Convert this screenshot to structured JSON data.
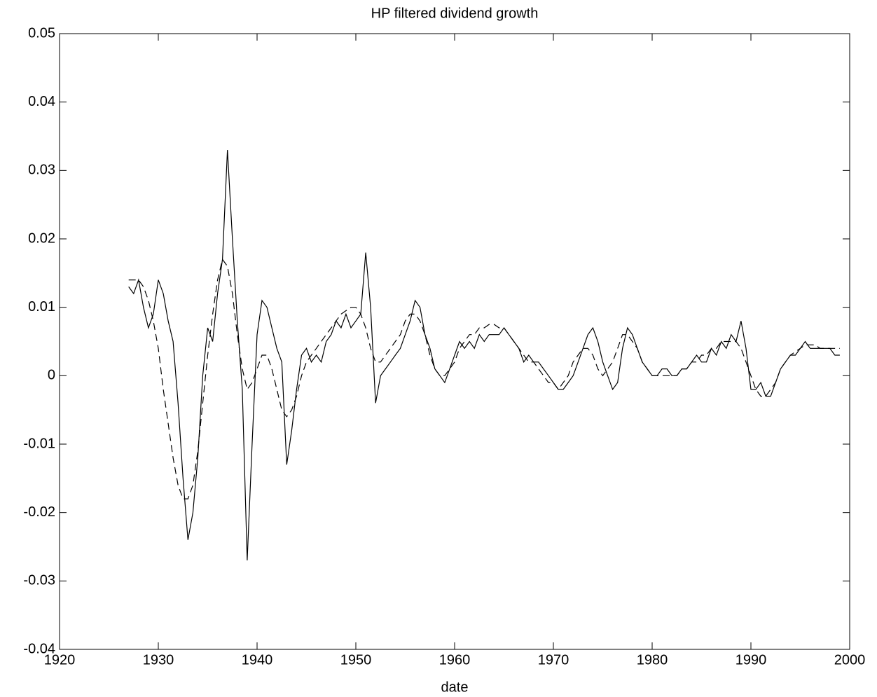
{
  "chart_data": {
    "type": "line",
    "title": "HP filtered dividend growth",
    "xlabel": "date",
    "x": [
      1927,
      1927.5,
      1928,
      1928.5,
      1929,
      1929.5,
      1930,
      1930.5,
      1931,
      1931.5,
      1932,
      1932.5,
      1933,
      1933.5,
      1934,
      1934.5,
      1935,
      1935.5,
      1936,
      1936.5,
      1937,
      1937.5,
      1938,
      1938.5,
      1939,
      1939.5,
      1940,
      1940.5,
      1941,
      1941.5,
      1942,
      1942.5,
      1943,
      1943.5,
      1944,
      1944.5,
      1945,
      1945.5,
      1946,
      1946.5,
      1947,
      1947.5,
      1948,
      1948.5,
      1949,
      1949.5,
      1950,
      1950.5,
      1951,
      1951.5,
      1952,
      1952.5,
      1953,
      1953.5,
      1954,
      1954.5,
      1955,
      1955.5,
      1956,
      1956.5,
      1957,
      1957.5,
      1958,
      1958.5,
      1959,
      1959.5,
      1960,
      1960.5,
      1961,
      1961.5,
      1962,
      1962.5,
      1963,
      1963.5,
      1964,
      1964.5,
      1965,
      1965.5,
      1966,
      1966.5,
      1967,
      1967.5,
      1968,
      1968.5,
      1969,
      1969.5,
      1970,
      1970.5,
      1971,
      1971.5,
      1972,
      1972.5,
      1973,
      1973.5,
      1974,
      1974.5,
      1975,
      1975.5,
      1976,
      1976.5,
      1977,
      1977.5,
      1978,
      1978.5,
      1979,
      1979.5,
      1980,
      1980.5,
      1981,
      1981.5,
      1982,
      1982.5,
      1983,
      1983.5,
      1984,
      1984.5,
      1985,
      1985.5,
      1986,
      1986.5,
      1987,
      1987.5,
      1988,
      1988.5,
      1989,
      1989.5,
      1990,
      1990.5,
      1991,
      1991.5,
      1992,
      1992.5,
      1993,
      1993.5,
      1994,
      1994.5,
      1995,
      1995.5,
      1996,
      1996.5,
      1997,
      1997.5,
      1998,
      1998.5,
      1999
    ],
    "series": [
      {
        "color": "#000000",
        "dash": false,
        "values": [
          0.013,
          0.012,
          0.014,
          0.01,
          0.007,
          0.009,
          0.014,
          0.012,
          0.008,
          0.005,
          -0.004,
          -0.015,
          -0.024,
          -0.02,
          -0.012,
          0.0,
          0.007,
          0.005,
          0.012,
          0.017,
          0.033,
          0.02,
          0.008,
          -0.002,
          -0.027,
          -0.01,
          0.006,
          0.011,
          0.01,
          0.007,
          0.004,
          0.002,
          -0.013,
          -0.008,
          -0.002,
          0.003,
          0.004,
          0.002,
          0.003,
          0.002,
          0.005,
          0.006,
          0.008,
          0.007,
          0.009,
          0.007,
          0.008,
          0.009,
          0.018,
          0.01,
          -0.004,
          0.0,
          0.001,
          0.002,
          0.003,
          0.004,
          0.006,
          0.008,
          0.011,
          0.01,
          0.006,
          0.004,
          0.001,
          0.0,
          -0.001,
          0.001,
          0.003,
          0.005,
          0.004,
          0.005,
          0.004,
          0.006,
          0.005,
          0.006,
          0.006,
          0.006,
          0.007,
          0.006,
          0.005,
          0.004,
          0.002,
          0.003,
          0.002,
          0.002,
          0.001,
          0.0,
          -0.001,
          -0.002,
          -0.002,
          -0.001,
          0.0,
          0.002,
          0.004,
          0.006,
          0.007,
          0.005,
          0.002,
          0.0,
          -0.002,
          -0.001,
          0.004,
          0.007,
          0.006,
          0.004,
          0.002,
          0.001,
          0.0,
          0.0,
          0.001,
          0.001,
          0.0,
          0.0,
          0.001,
          0.001,
          0.002,
          0.003,
          0.002,
          0.002,
          0.004,
          0.003,
          0.005,
          0.004,
          0.006,
          0.005,
          0.008,
          0.004,
          -0.002,
          -0.002,
          -0.001,
          -0.003,
          -0.003,
          -0.001,
          0.001,
          0.002,
          0.003,
          0.003,
          0.004,
          0.005,
          0.004,
          0.004,
          0.004,
          0.004,
          0.004,
          0.003,
          0.003
        ]
      },
      {
        "color": "#000000",
        "dash": true,
        "values": [
          0.014,
          0.014,
          0.014,
          0.013,
          0.011,
          0.008,
          0.004,
          -0.002,
          -0.007,
          -0.012,
          -0.016,
          -0.018,
          -0.018,
          -0.016,
          -0.011,
          -0.004,
          0.003,
          0.009,
          0.014,
          0.017,
          0.016,
          0.012,
          0.006,
          0.001,
          -0.002,
          -0.001,
          0.001,
          0.003,
          0.003,
          0.001,
          -0.002,
          -0.005,
          -0.006,
          -0.005,
          -0.003,
          0.0,
          0.002,
          0.003,
          0.004,
          0.005,
          0.006,
          0.007,
          0.008,
          0.009,
          0.0095,
          0.01,
          0.01,
          0.009,
          0.007,
          0.004,
          0.002,
          0.002,
          0.003,
          0.004,
          0.005,
          0.006,
          0.008,
          0.009,
          0.009,
          0.008,
          0.006,
          0.003,
          0.001,
          0.0,
          0.0,
          0.001,
          0.002,
          0.004,
          0.005,
          0.006,
          0.006,
          0.007,
          0.007,
          0.0075,
          0.0075,
          0.007,
          0.007,
          0.006,
          0.005,
          0.004,
          0.003,
          0.002,
          0.002,
          0.001,
          0.0,
          -0.001,
          -0.001,
          -0.002,
          -0.001,
          0.0,
          0.002,
          0.003,
          0.004,
          0.004,
          0.003,
          0.001,
          0.0,
          0.001,
          0.002,
          0.004,
          0.006,
          0.006,
          0.005,
          0.004,
          0.002,
          0.001,
          0.0,
          0.0,
          0.0,
          0.0,
          0.0,
          0.0,
          0.001,
          0.001,
          0.002,
          0.002,
          0.003,
          0.003,
          0.004,
          0.004,
          0.005,
          0.005,
          0.005,
          0.005,
          0.004,
          0.002,
          0.0,
          -0.002,
          -0.003,
          -0.003,
          -0.002,
          -0.001,
          0.001,
          0.002,
          0.003,
          0.0035,
          0.004,
          0.0045,
          0.0045,
          0.0045,
          0.004,
          0.004,
          0.004,
          0.004,
          0.004
        ]
      }
    ],
    "xlim": [
      1920,
      2000
    ],
    "xticks": [
      1920,
      1930,
      1940,
      1950,
      1960,
      1970,
      1980,
      1990,
      2000
    ],
    "ylim": [
      -0.04,
      0.05
    ],
    "yticks": [
      -0.04,
      -0.03,
      -0.02,
      -0.01,
      0,
      0.01,
      0.02,
      0.03,
      0.04,
      0.05
    ],
    "grid": false
  }
}
